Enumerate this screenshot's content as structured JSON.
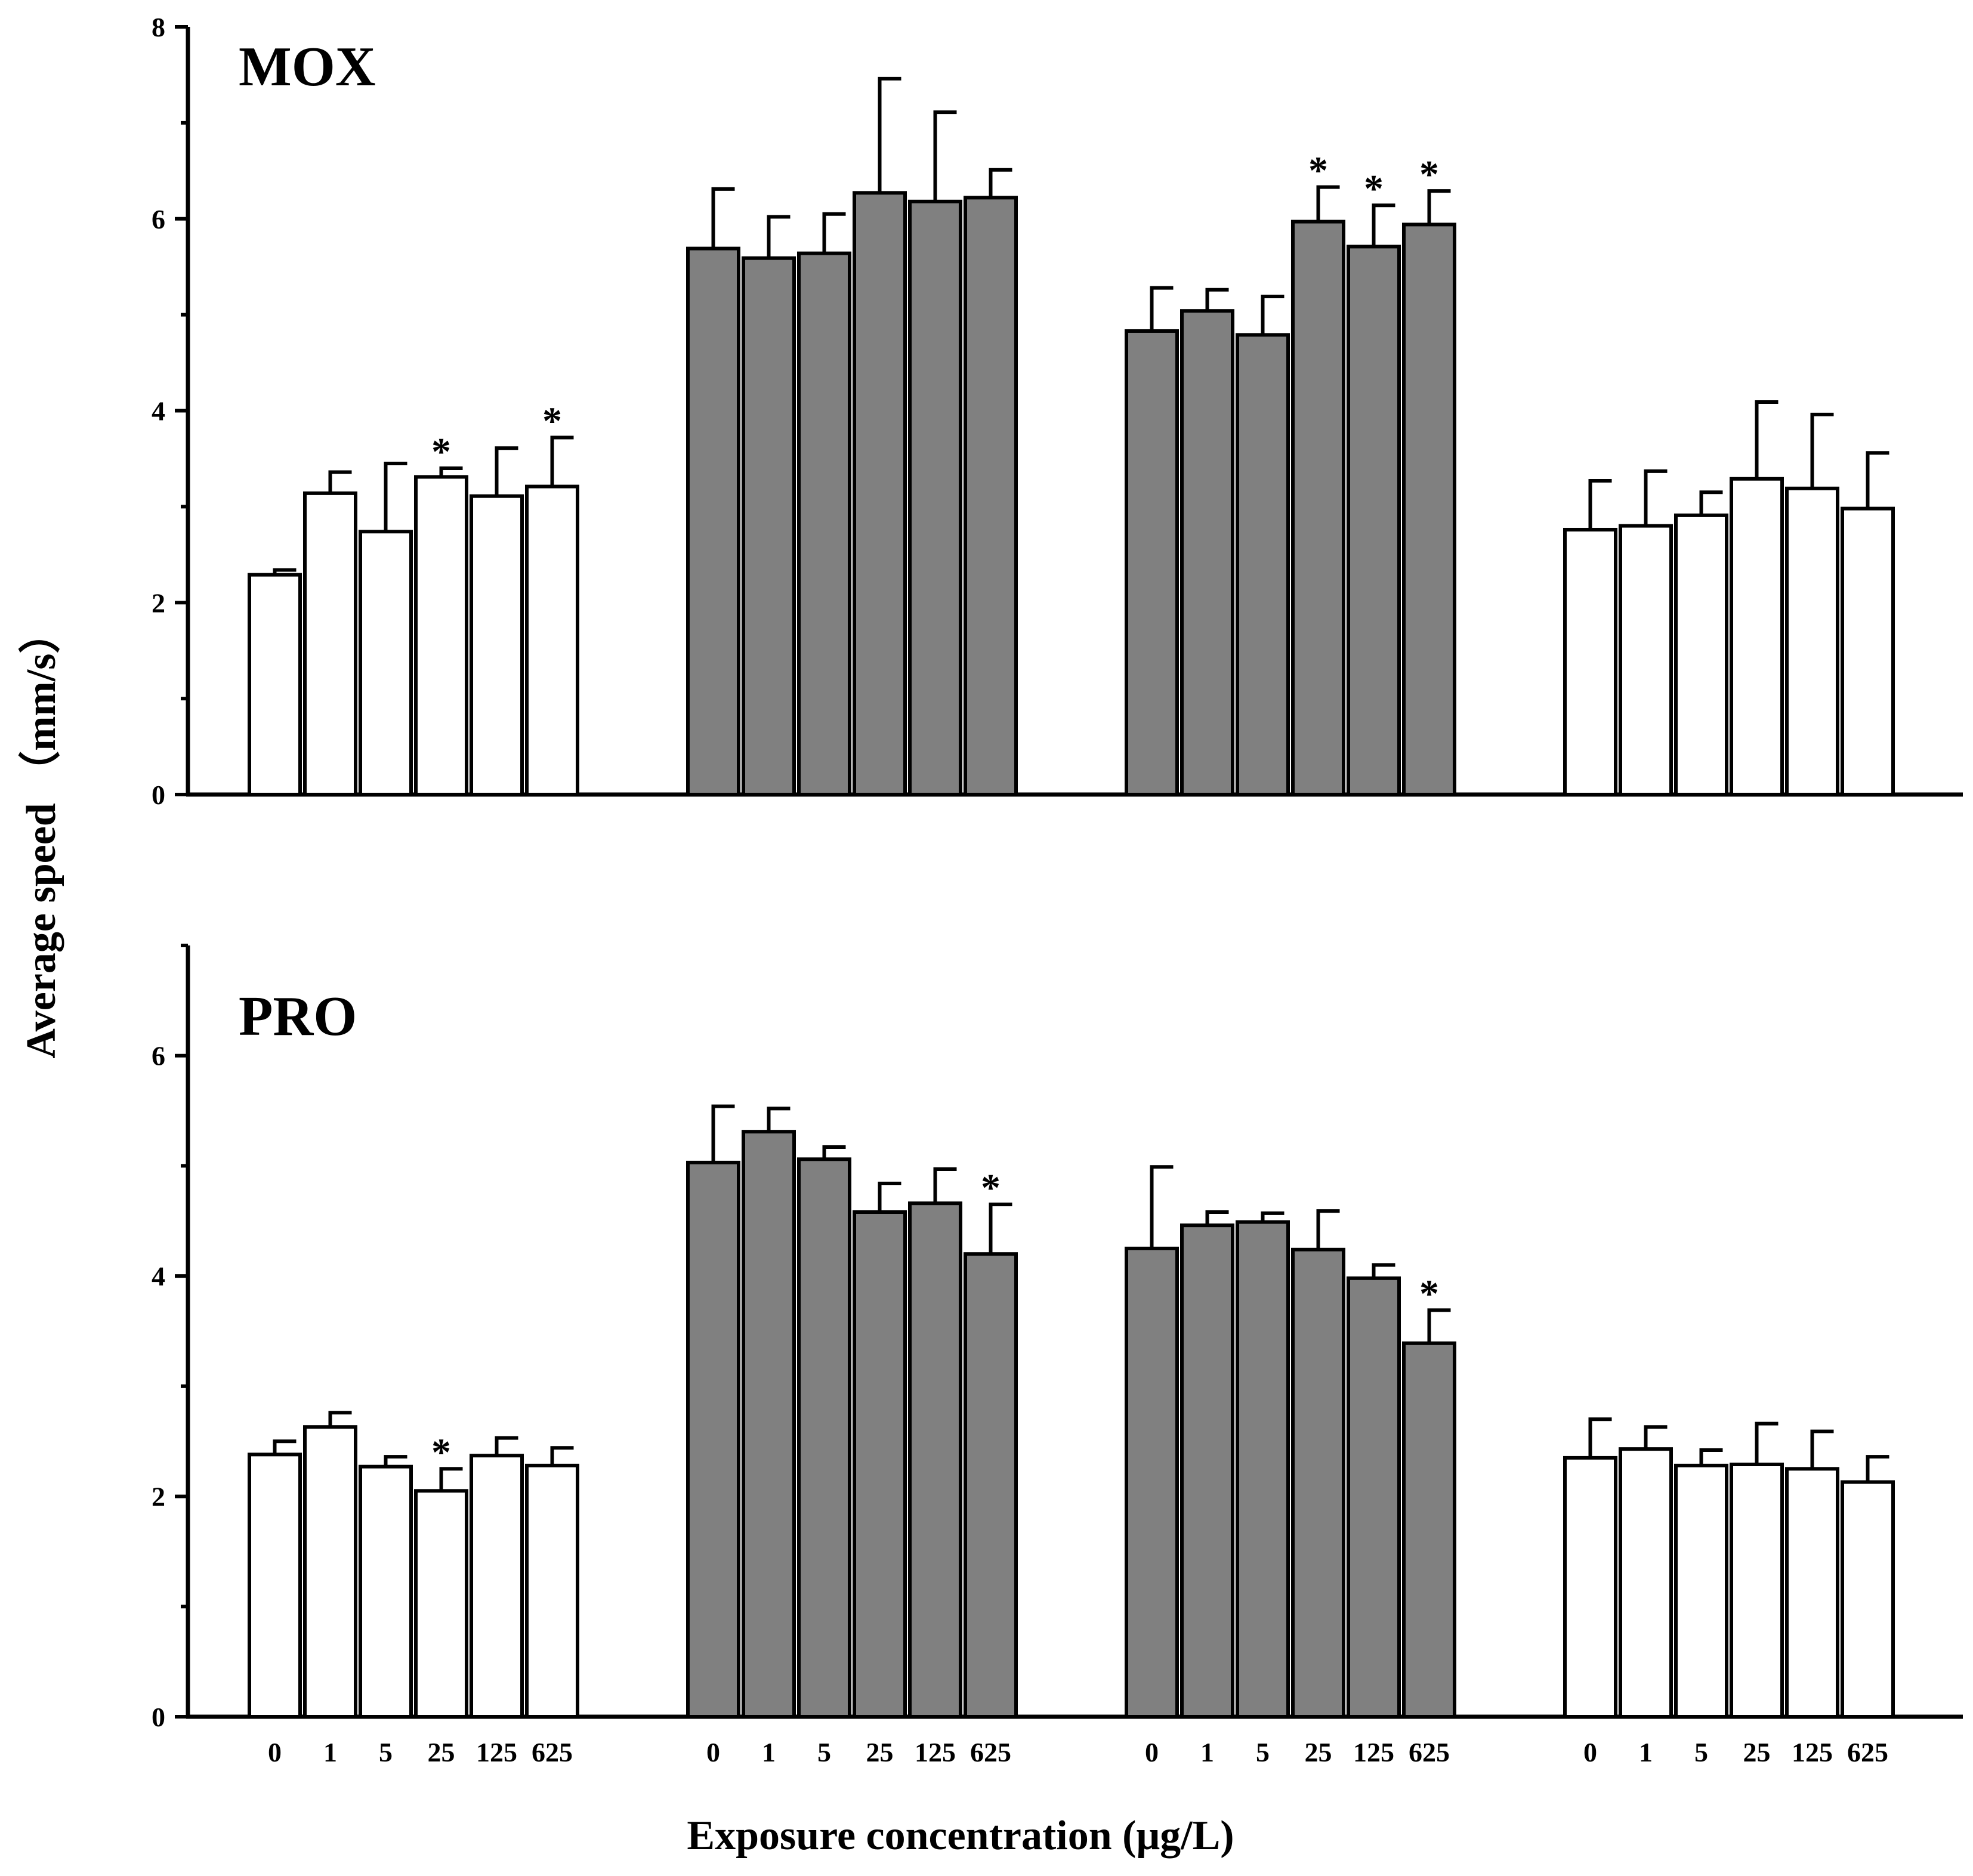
{
  "chart_data": {
    "type": "bar",
    "xlabel": "Exposure concentration (μg/L)",
    "ylabel": "Average speed （mm/s）",
    "categories": [
      "0",
      "1",
      "5",
      "25",
      "125",
      "625"
    ],
    "group_fills": [
      "#ffffff",
      "#808080",
      "#808080",
      "#ffffff"
    ],
    "significance_symbol": "*",
    "panels": [
      {
        "label": "MOX",
        "ylim": [
          0,
          8
        ],
        "yticks": [
          "0",
          "2",
          "4",
          "6",
          "8"
        ],
        "ytick_values": [
          0,
          2,
          4,
          6,
          8
        ],
        "groups": [
          {
            "values": [
              2.29,
              3.14,
              2.74,
              3.31,
              3.11,
              3.21
            ],
            "errors": [
              0.05,
              0.22,
              0.71,
              0.09,
              0.5,
              0.51
            ],
            "significant": [
              false,
              false,
              false,
              true,
              false,
              true
            ]
          },
          {
            "values": [
              5.69,
              5.59,
              5.64,
              6.27,
              6.18,
              6.22
            ],
            "errors": [
              0.62,
              0.43,
              0.41,
              1.19,
              0.93,
              0.29
            ],
            "significant": [
              false,
              false,
              false,
              false,
              false,
              false
            ]
          },
          {
            "values": [
              4.83,
              5.04,
              4.79,
              5.97,
              5.71,
              5.94
            ],
            "errors": [
              0.45,
              0.22,
              0.4,
              0.36,
              0.43,
              0.35
            ],
            "significant": [
              false,
              false,
              false,
              true,
              true,
              true
            ]
          },
          {
            "values": [
              2.76,
              2.8,
              2.91,
              3.29,
              3.19,
              2.98
            ],
            "errors": [
              0.51,
              0.57,
              0.24,
              0.8,
              0.77,
              0.58
            ],
            "significant": [
              false,
              false,
              false,
              false,
              false,
              false
            ]
          }
        ]
      },
      {
        "label": "PRO",
        "ylim": [
          0,
          7
        ],
        "yticks": [
          "0",
          "2",
          "4",
          "6"
        ],
        "ytick_values": [
          0,
          2,
          4,
          6
        ],
        "groups": [
          {
            "values": [
              2.38,
              2.63,
              2.27,
              2.05,
              2.37,
              2.28
            ],
            "errors": [
              0.12,
              0.13,
              0.09,
              0.2,
              0.16,
              0.16
            ],
            "significant": [
              false,
              false,
              false,
              true,
              false,
              false
            ]
          },
          {
            "values": [
              5.03,
              5.31,
              5.06,
              4.58,
              4.66,
              4.2
            ],
            "errors": [
              0.51,
              0.21,
              0.11,
              0.26,
              0.31,
              0.45
            ],
            "significant": [
              false,
              false,
              false,
              false,
              false,
              true
            ]
          },
          {
            "values": [
              4.25,
              4.46,
              4.49,
              4.24,
              3.98,
              3.39
            ],
            "errors": [
              0.74,
              0.12,
              0.08,
              0.35,
              0.12,
              0.3
            ],
            "significant": [
              false,
              false,
              false,
              false,
              false,
              true
            ]
          },
          {
            "values": [
              2.35,
              2.43,
              2.28,
              2.29,
              2.25,
              2.13
            ],
            "errors": [
              0.35,
              0.2,
              0.14,
              0.37,
              0.34,
              0.23
            ],
            "significant": [
              false,
              false,
              false,
              false,
              false,
              false
            ]
          }
        ]
      }
    ]
  }
}
